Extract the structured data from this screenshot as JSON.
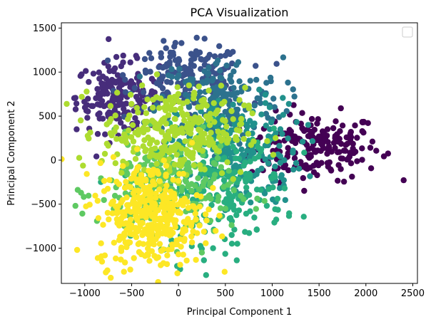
{
  "chart_data": {
    "type": "scatter",
    "title": "PCA Visualization",
    "xlabel": "Principal Component 1",
    "ylabel": "Principal Component 2",
    "xlim": [
      -1250,
      2550
    ],
    "ylim": [
      -1400,
      1560
    ],
    "xticks": [
      -1000,
      -500,
      0,
      500,
      1000,
      1500,
      2000,
      2500
    ],
    "yticks": [
      -1000,
      -500,
      0,
      500,
      1000,
      1500
    ],
    "grid": false,
    "legend": {
      "placement": "upper right",
      "entries": []
    },
    "colormap": "viridis",
    "clusters": [
      {
        "label": "dark purple",
        "color": "#440154",
        "center": [
          1450,
          150
        ],
        "spread": [
          350,
          190
        ],
        "count": 200
      },
      {
        "label": "purple",
        "color": "#472d7b",
        "center": [
          -650,
          720
        ],
        "spread": [
          220,
          200
        ],
        "count": 180
      },
      {
        "label": "indigo",
        "color": "#3b528b",
        "center": [
          100,
          950
        ],
        "spread": [
          300,
          180
        ],
        "count": 170
      },
      {
        "label": "blue",
        "color": "#2c728e",
        "center": [
          450,
          700
        ],
        "spread": [
          330,
          230
        ],
        "count": 170
      },
      {
        "label": "teal",
        "color": "#21918c",
        "center": [
          650,
          100
        ],
        "spread": [
          330,
          300
        ],
        "count": 200
      },
      {
        "label": "green-teal",
        "color": "#28ae80",
        "center": [
          450,
          -300
        ],
        "spread": [
          340,
          320
        ],
        "count": 220
      },
      {
        "label": "green",
        "color": "#5ec962",
        "center": [
          -150,
          -350
        ],
        "spread": [
          360,
          280
        ],
        "count": 240
      },
      {
        "label": "lime",
        "color": "#addc30",
        "center": [
          -50,
          320
        ],
        "spread": [
          380,
          250
        ],
        "count": 320
      },
      {
        "label": "yellow",
        "color": "#fde725",
        "center": [
          -300,
          -620
        ],
        "spread": [
          280,
          300
        ],
        "count": 380
      }
    ]
  }
}
